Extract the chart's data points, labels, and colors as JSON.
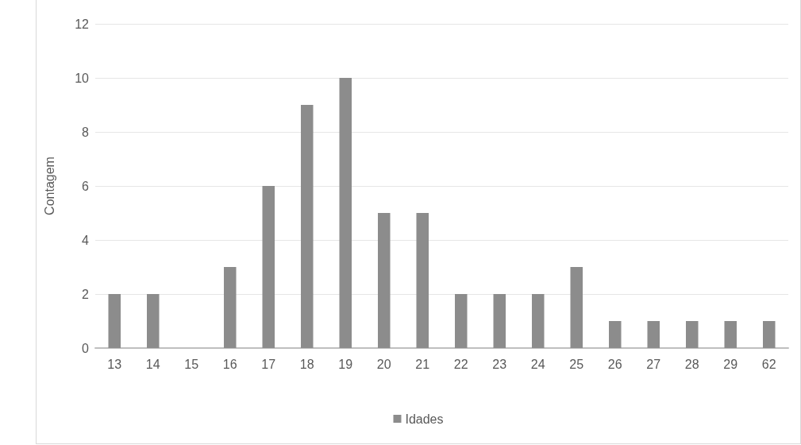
{
  "chart_data": {
    "type": "bar",
    "ylabel": "Contagem",
    "categories": [
      "13",
      "14",
      "15",
      "16",
      "17",
      "18",
      "19",
      "20",
      "21",
      "22",
      "23",
      "24",
      "25",
      "26",
      "27",
      "28",
      "29",
      "62"
    ],
    "series": [
      {
        "name": "Idades",
        "color": "#8c8c8c",
        "values": [
          2,
          2,
          0,
          3,
          6,
          9,
          10,
          5,
          5,
          2,
          2,
          2,
          3,
          1,
          1,
          1,
          1,
          1
        ]
      }
    ],
    "ylim": [
      0,
      12
    ],
    "yticks": [
      0,
      2,
      4,
      6,
      8,
      10,
      12
    ],
    "grid": "y",
    "legend": "bottom"
  }
}
